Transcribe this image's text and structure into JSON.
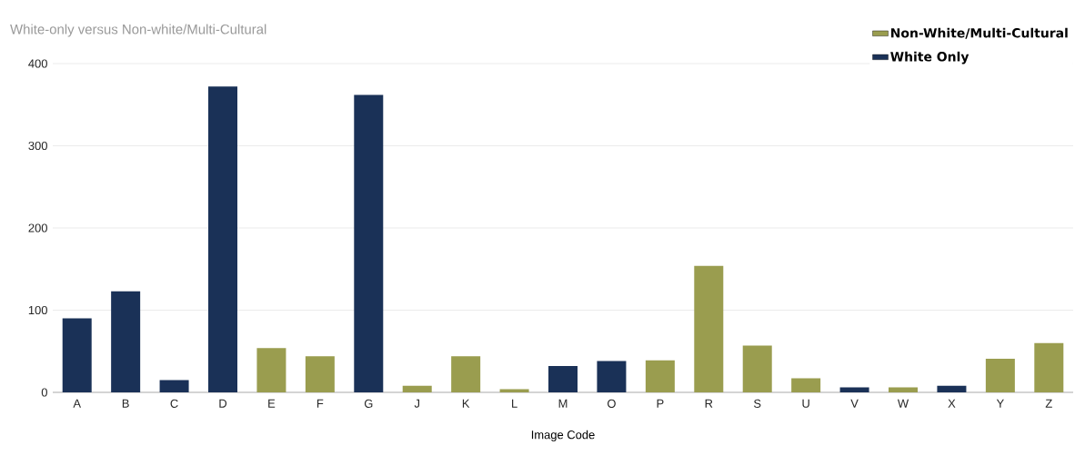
{
  "chart_data": {
    "type": "bar",
    "title": "White-only versus Non-white/Multi-Cultural",
    "xlabel": "Image Code",
    "categories": [
      "A",
      "B",
      "C",
      "D",
      "E",
      "F",
      "G",
      "J",
      "K",
      "L",
      "M",
      "O",
      "P",
      "R",
      "S",
      "U",
      "V",
      "W",
      "X",
      "Y",
      "Z"
    ],
    "series": [
      {
        "name": "Non-White/Multi-Cultural",
        "color": "#9a9d4f",
        "values": [
          null,
          null,
          null,
          null,
          54,
          44,
          null,
          8,
          44,
          4,
          null,
          null,
          39,
          154,
          57,
          17,
          null,
          6,
          null,
          41,
          60
        ]
      },
      {
        "name": "White Only",
        "color": "#1a3157",
        "values": [
          90,
          123,
          15,
          372,
          null,
          null,
          362,
          null,
          null,
          null,
          32,
          38,
          null,
          null,
          null,
          null,
          6,
          null,
          8,
          null,
          null
        ]
      }
    ],
    "ylim": [
      0,
      400
    ],
    "yticks": [
      0,
      100,
      200,
      300,
      400
    ],
    "grid": "y",
    "legend": "top right"
  }
}
